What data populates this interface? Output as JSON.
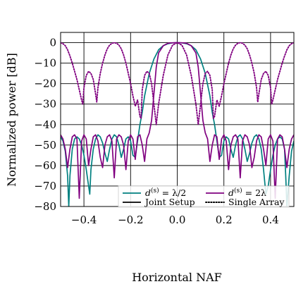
{
  "colors": {
    "teal": "#008080",
    "purple": "#800080",
    "black": "#000000"
  },
  "chart_data": {
    "type": "line",
    "xlabel": "Horizontal NAF",
    "ylabel": "Normalized power [dB]",
    "xlim": [
      -0.5,
      0.5
    ],
    "ylim": [
      -80,
      5
    ],
    "xticks": [
      -0.4,
      -0.2,
      0.0,
      0.2,
      0.4
    ],
    "xtick_labels": [
      "−0.4",
      "−0.2",
      "0.0",
      "0.2",
      "0.4"
    ],
    "yticks": [
      0,
      -10,
      -20,
      -30,
      -40,
      -50,
      -60,
      -70,
      -80
    ],
    "ytick_labels": [
      "0",
      "−10",
      "−20",
      "−30",
      "−40",
      "−50",
      "−60",
      "−70",
      "−80"
    ],
    "grid": true,
    "legend": {
      "placement": "bottom-right",
      "entries": [
        {
          "label_main": "d",
          "label_sup": "(s)",
          "label_rest": " = λ/2",
          "color": "#008080",
          "style": "solid"
        },
        {
          "label_main": "d",
          "label_sup": "(s)",
          "label_rest": " = 2λ",
          "color": "#800080",
          "style": "solid"
        },
        {
          "label_main": "Joint Setup",
          "label_sup": "",
          "label_rest": "",
          "color": "#000000",
          "style": "solid"
        },
        {
          "label_main": "Single Array",
          "label_sup": "",
          "label_rest": "",
          "color": "#000000",
          "style": "dotted"
        }
      ]
    },
    "series": [
      {
        "color": "#008080",
        "style": "solid",
        "x": [
          -0.5,
          -0.49,
          -0.48,
          -0.47,
          -0.465,
          -0.46,
          -0.45,
          -0.44,
          -0.43,
          -0.42,
          -0.41,
          -0.4,
          -0.39,
          -0.38,
          -0.375,
          -0.37,
          -0.36,
          -0.35,
          -0.34,
          -0.33,
          -0.32,
          -0.31,
          -0.3,
          -0.29,
          -0.28,
          -0.27,
          -0.26,
          -0.25,
          -0.24,
          -0.23,
          -0.22,
          -0.21,
          -0.2,
          -0.19,
          -0.18,
          -0.17,
          -0.16,
          -0.15,
          -0.14,
          -0.12,
          -0.1,
          -0.08,
          -0.06,
          -0.04,
          -0.02,
          0.0,
          0.02,
          0.04,
          0.06,
          0.08,
          0.1,
          0.12,
          0.14,
          0.15,
          0.16,
          0.17,
          0.18,
          0.19,
          0.2,
          0.21,
          0.22,
          0.23,
          0.24,
          0.25,
          0.26,
          0.27,
          0.28,
          0.29,
          0.3,
          0.31,
          0.32,
          0.33,
          0.34,
          0.35,
          0.36,
          0.37,
          0.38,
          0.39,
          0.4,
          0.41,
          0.42,
          0.43,
          0.44,
          0.45,
          0.46,
          0.465,
          0.47,
          0.48,
          0.49,
          0.5
        ],
        "y": [
          -46,
          -48,
          -53,
          -65,
          -80,
          -65,
          -52,
          -47,
          -46,
          -47,
          -50,
          -55,
          -62,
          -70,
          -74,
          -62,
          -52,
          -47,
          -45,
          -46,
          -49,
          -54,
          -58,
          -52,
          -47,
          -45,
          -46,
          -50,
          -56,
          -52,
          -47,
          -46,
          -48,
          -55,
          -56,
          -48,
          -40,
          -34,
          -26,
          -15,
          -8,
          -3.5,
          -1.5,
          -0.5,
          -0.1,
          0,
          -0.1,
          -0.5,
          -1.5,
          -3.5,
          -8,
          -15,
          -26,
          -34,
          -40,
          -48,
          -56,
          -55,
          -48,
          -46,
          -47,
          -52,
          -56,
          -50,
          -46,
          -45,
          -47,
          -52,
          -58,
          -54,
          -49,
          -46,
          -45,
          -47,
          -52,
          -62,
          -74,
          -70,
          -62,
          -55,
          -50,
          -47,
          -46,
          -47,
          -52,
          -65,
          -80,
          -65,
          -53,
          -48
        ]
      },
      {
        "color": "#800080",
        "style": "solid",
        "x": [
          -0.5,
          -0.49,
          -0.48,
          -0.47,
          -0.46,
          -0.45,
          -0.44,
          -0.43,
          -0.42,
          -0.41,
          -0.4,
          -0.39,
          -0.38,
          -0.37,
          -0.36,
          -0.35,
          -0.34,
          -0.33,
          -0.32,
          -0.31,
          -0.3,
          -0.29,
          -0.28,
          -0.27,
          -0.26,
          -0.25,
          -0.24,
          -0.23,
          -0.22,
          -0.21,
          -0.2,
          -0.19,
          -0.18,
          -0.17,
          -0.16,
          -0.15,
          -0.14,
          -0.13,
          -0.12,
          -0.11,
          -0.1,
          -0.09,
          -0.08,
          -0.06,
          -0.04,
          -0.02,
          0.0,
          0.02,
          0.04,
          0.06,
          0.08,
          0.09,
          0.1,
          0.11,
          0.12,
          0.13,
          0.14,
          0.15,
          0.16,
          0.17,
          0.18,
          0.19,
          0.2,
          0.21,
          0.22,
          0.23,
          0.24,
          0.25,
          0.26,
          0.27,
          0.28,
          0.29,
          0.3,
          0.31,
          0.32,
          0.33,
          0.34,
          0.35,
          0.36,
          0.37,
          0.38,
          0.39,
          0.4,
          0.41,
          0.42,
          0.43,
          0.44,
          0.45,
          0.46,
          0.47,
          0.48,
          0.49,
          0.5
        ],
        "y": [
          -45,
          -47,
          -52,
          -61,
          -52,
          -46,
          -45,
          -47,
          -76,
          -48,
          -45,
          -47,
          -60,
          -52,
          -46,
          -45,
          -48,
          -56,
          -61,
          -50,
          -46,
          -45,
          -48,
          -66,
          -47,
          -45,
          -46,
          -50,
          -62,
          -48,
          -45,
          -47,
          -57,
          -46,
          -45,
          -50,
          -58,
          -47,
          -44,
          -38,
          -25,
          -12,
          -5,
          -1.5,
          -0.3,
          -0.05,
          0,
          -0.05,
          -0.3,
          -1.5,
          -5,
          -12,
          -25,
          -38,
          -44,
          -47,
          -58,
          -50,
          -45,
          -46,
          -57,
          -47,
          -45,
          -48,
          -62,
          -50,
          -46,
          -45,
          -47,
          -66,
          -48,
          -45,
          -46,
          -50,
          -61,
          -56,
          -48,
          -45,
          -46,
          -52,
          -60,
          -47,
          -45,
          -48,
          -76,
          -47,
          -45,
          -46,
          -52,
          -61,
          -52,
          -47,
          -45
        ]
      },
      {
        "color": "#800080",
        "style": "dotted",
        "x": [
          -0.5,
          -0.49,
          -0.48,
          -0.47,
          -0.46,
          -0.45,
          -0.44,
          -0.43,
          -0.42,
          -0.41,
          -0.405,
          -0.4,
          -0.39,
          -0.38,
          -0.37,
          -0.36,
          -0.35,
          -0.345,
          -0.34,
          -0.33,
          -0.32,
          -0.31,
          -0.3,
          -0.29,
          -0.28,
          -0.27,
          -0.26,
          -0.25,
          -0.24,
          -0.23,
          -0.22,
          -0.21,
          -0.2,
          -0.19,
          -0.18,
          -0.17,
          -0.16,
          -0.155,
          -0.15,
          -0.14,
          -0.13,
          -0.12,
          -0.11,
          -0.1,
          -0.09,
          -0.08,
          -0.06,
          -0.04,
          -0.02,
          0.0,
          0.02,
          0.04,
          0.06,
          0.08,
          0.09,
          0.1,
          0.11,
          0.12,
          0.13,
          0.14,
          0.15,
          0.155,
          0.16,
          0.17,
          0.18,
          0.19,
          0.2,
          0.21,
          0.22,
          0.23,
          0.24,
          0.25,
          0.26,
          0.27,
          0.28,
          0.29,
          0.3,
          0.31,
          0.32,
          0.33,
          0.34,
          0.345,
          0.35,
          0.36,
          0.37,
          0.38,
          0.39,
          0.4,
          0.405,
          0.41,
          0.42,
          0.43,
          0.44,
          0.45,
          0.46,
          0.47,
          0.48,
          0.49,
          0.5
        ],
        "y": [
          0,
          -0.5,
          -1.5,
          -3.5,
          -6.5,
          -10,
          -14,
          -18,
          -23,
          -28,
          -30,
          -22,
          -16,
          -14,
          -15,
          -18,
          -25,
          -29,
          -22,
          -15,
          -10,
          -6,
          -3,
          -1.2,
          -0.3,
          0,
          -0.3,
          -1.2,
          -3,
          -6,
          -10,
          -15,
          -20,
          -26,
          -31,
          -28,
          -36,
          -37,
          -23,
          -16,
          -14,
          -15,
          -20,
          -30,
          -40,
          -30,
          -16,
          -6,
          -1.2,
          0,
          -1.2,
          -6,
          -16,
          -30,
          -40,
          -30,
          -20,
          -15,
          -14,
          -16,
          -23,
          -37,
          -36,
          -28,
          -31,
          -26,
          -20,
          -15,
          -10,
          -6,
          -3,
          -1.2,
          -0.3,
          0,
          -0.3,
          -1.2,
          -3,
          -6,
          -10,
          -15,
          -22,
          -29,
          -25,
          -18,
          -15,
          -14,
          -16,
          -22,
          -30,
          -28,
          -23,
          -18,
          -14,
          -10,
          -6.5,
          -3.5,
          -1.5,
          -0.5,
          0
        ]
      }
    ]
  }
}
